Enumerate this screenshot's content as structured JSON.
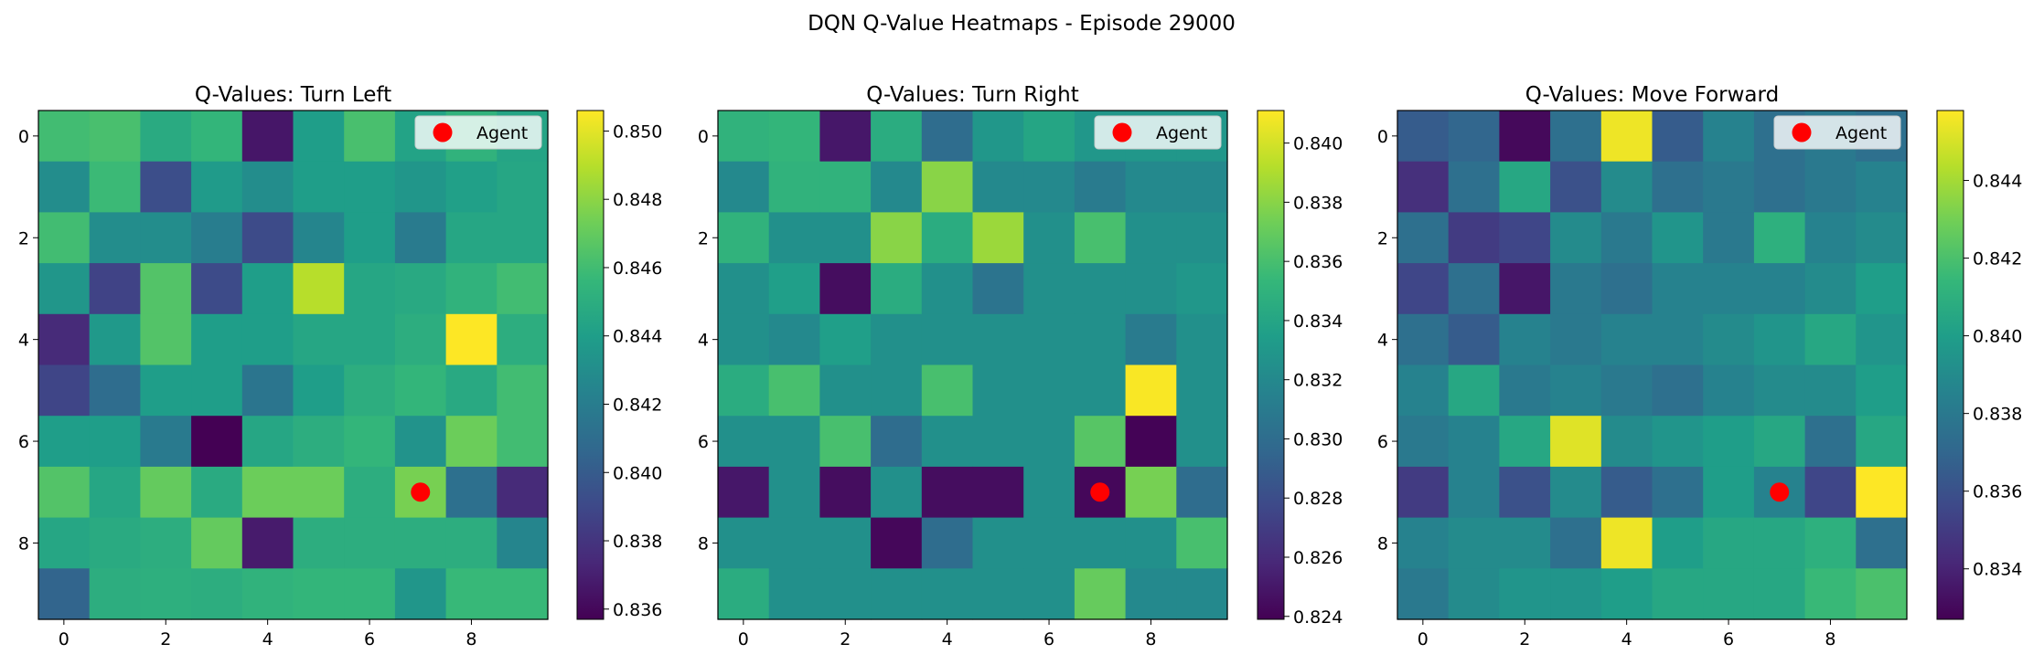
{
  "figure": {
    "title": "DQN Q-Value Heatmaps - Episode 29000"
  },
  "colormap": {
    "name": "viridis",
    "stops": [
      "#440154",
      "#482878",
      "#3e4989",
      "#31688e",
      "#26828e",
      "#1f9e89",
      "#35b779",
      "#6ece58",
      "#b5de2b",
      "#fde725"
    ]
  },
  "agent": {
    "color": "#ff0000",
    "legend_label": "Agent"
  },
  "chart_data": [
    {
      "type": "heatmap",
      "title": "Q-Values: Turn Left",
      "x_ticks": [
        "0",
        "2",
        "4",
        "6",
        "8"
      ],
      "y_ticks": [
        "0",
        "2",
        "4",
        "6",
        "8"
      ],
      "colorbar": {
        "range": [
          0.8357,
          0.8506
        ],
        "ticks": [
          0.836,
          0.838,
          0.84,
          0.842,
          0.844,
          0.846,
          0.848,
          0.85
        ]
      },
      "agent": {
        "x": 7,
        "y": 7
      },
      "legend": {
        "position": "upper right"
      },
      "values": [
        [
          0.846,
          0.8462,
          0.8448,
          0.8455,
          0.8366,
          0.844,
          0.8462,
          0.8443,
          0.8453,
          0.8444
        ],
        [
          0.843,
          0.8458,
          0.8393,
          0.8438,
          0.843,
          0.844,
          0.844,
          0.8435,
          0.8441,
          0.8445
        ],
        [
          0.846,
          0.843,
          0.843,
          0.842,
          0.8391,
          0.8425,
          0.844,
          0.8419,
          0.8445,
          0.8445
        ],
        [
          0.8435,
          0.8387,
          0.8465,
          0.8391,
          0.844,
          0.849,
          0.8445,
          0.8447,
          0.8453,
          0.846
        ],
        [
          0.8375,
          0.8437,
          0.8465,
          0.844,
          0.844,
          0.8445,
          0.8445,
          0.845,
          0.8506,
          0.845
        ],
        [
          0.8388,
          0.841,
          0.844,
          0.844,
          0.8415,
          0.844,
          0.845,
          0.8455,
          0.8447,
          0.846
        ],
        [
          0.844,
          0.844,
          0.8418,
          0.8357,
          0.8445,
          0.845,
          0.8455,
          0.8433,
          0.8472,
          0.846
        ],
        [
          0.8465,
          0.8445,
          0.847,
          0.8448,
          0.8472,
          0.8472,
          0.845,
          0.8475,
          0.8412,
          0.8375
        ],
        [
          0.8445,
          0.8448,
          0.845,
          0.847,
          0.8368,
          0.845,
          0.845,
          0.845,
          0.845,
          0.8425
        ],
        [
          0.8405,
          0.845,
          0.8451,
          0.845,
          0.8453,
          0.8455,
          0.8455,
          0.8435,
          0.8457,
          0.8457
        ]
      ]
    },
    {
      "type": "heatmap",
      "title": "Q-Values: Turn Right",
      "x_ticks": [
        "0",
        "2",
        "4",
        "6",
        "8"
      ],
      "y_ticks": [
        "0",
        "2",
        "4",
        "6",
        "8"
      ],
      "colorbar": {
        "range": [
          0.8239,
          0.8411
        ],
        "ticks": [
          0.824,
          0.826,
          0.828,
          0.83,
          0.832,
          0.834,
          0.836,
          0.838,
          0.84
        ]
      },
      "agent": {
        "x": 7,
        "y": 7
      },
      "legend": {
        "position": "upper right"
      },
      "values": [
        [
          0.835,
          0.8352,
          0.825,
          0.8345,
          0.83,
          0.833,
          0.834,
          0.833,
          0.833,
          0.833
        ],
        [
          0.832,
          0.835,
          0.835,
          0.832,
          0.838,
          0.832,
          0.832,
          0.831,
          0.832,
          0.832
        ],
        [
          0.835,
          0.8325,
          0.8325,
          0.838,
          0.8345,
          0.8385,
          0.8325,
          0.836,
          0.8325,
          0.8325
        ],
        [
          0.8325,
          0.8335,
          0.8245,
          0.8345,
          0.8325,
          0.8305,
          0.8325,
          0.8325,
          0.8325,
          0.833
        ],
        [
          0.8325,
          0.832,
          0.8335,
          0.8325,
          0.8325,
          0.8325,
          0.8325,
          0.8325,
          0.831,
          0.8325
        ],
        [
          0.8345,
          0.836,
          0.8325,
          0.8325,
          0.836,
          0.8325,
          0.8325,
          0.8325,
          0.841,
          0.8325
        ],
        [
          0.8325,
          0.8325,
          0.836,
          0.83,
          0.8325,
          0.8325,
          0.8325,
          0.8365,
          0.824,
          0.8325
        ],
        [
          0.825,
          0.8325,
          0.8245,
          0.8325,
          0.8245,
          0.8245,
          0.8325,
          0.8242,
          0.8375,
          0.83
        ],
        [
          0.8325,
          0.8325,
          0.8325,
          0.8242,
          0.83,
          0.8325,
          0.8325,
          0.8325,
          0.8325,
          0.836
        ],
        [
          0.8345,
          0.8325,
          0.8325,
          0.8325,
          0.8325,
          0.8325,
          0.8325,
          0.837,
          0.832,
          0.832
        ]
      ]
    },
    {
      "type": "heatmap",
      "title": "Q-Values: Move Forward",
      "x_ticks": [
        "0",
        "2",
        "4",
        "6",
        "8"
      ],
      "y_ticks": [
        "0",
        "2",
        "4",
        "6",
        "8"
      ],
      "colorbar": {
        "range": [
          0.8327,
          0.8458
        ],
        "ticks": [
          0.834,
          0.836,
          0.838,
          0.84,
          0.842,
          0.844
        ]
      },
      "agent": {
        "x": 7,
        "y": 7
      },
      "legend": {
        "position": "upper right"
      },
      "values": [
        [
          0.8365,
          0.837,
          0.833,
          0.8375,
          0.8455,
          0.8365,
          0.8385,
          0.8375,
          0.838,
          0.8375
        ],
        [
          0.8345,
          0.8375,
          0.8405,
          0.836,
          0.839,
          0.8375,
          0.838,
          0.8375,
          0.838,
          0.8385
        ],
        [
          0.8375,
          0.835,
          0.8355,
          0.839,
          0.838,
          0.8395,
          0.838,
          0.841,
          0.8385,
          0.839
        ],
        [
          0.8355,
          0.8375,
          0.8335,
          0.838,
          0.8375,
          0.8385,
          0.8385,
          0.8385,
          0.839,
          0.84
        ],
        [
          0.8375,
          0.8365,
          0.8385,
          0.838,
          0.8385,
          0.8385,
          0.839,
          0.8395,
          0.8405,
          0.8395
        ],
        [
          0.8385,
          0.8405,
          0.838,
          0.8385,
          0.838,
          0.8375,
          0.8385,
          0.839,
          0.839,
          0.84
        ],
        [
          0.838,
          0.8385,
          0.8405,
          0.8452,
          0.839,
          0.8395,
          0.84,
          0.8405,
          0.8375,
          0.8405
        ],
        [
          0.835,
          0.8385,
          0.836,
          0.839,
          0.8365,
          0.8375,
          0.84,
          0.8385,
          0.8355,
          0.8458
        ],
        [
          0.8385,
          0.839,
          0.839,
          0.8375,
          0.8455,
          0.84,
          0.8405,
          0.8405,
          0.841,
          0.8375
        ],
        [
          0.838,
          0.839,
          0.8395,
          0.8395,
          0.84,
          0.8405,
          0.8405,
          0.8405,
          0.8415,
          0.842
        ]
      ]
    }
  ]
}
